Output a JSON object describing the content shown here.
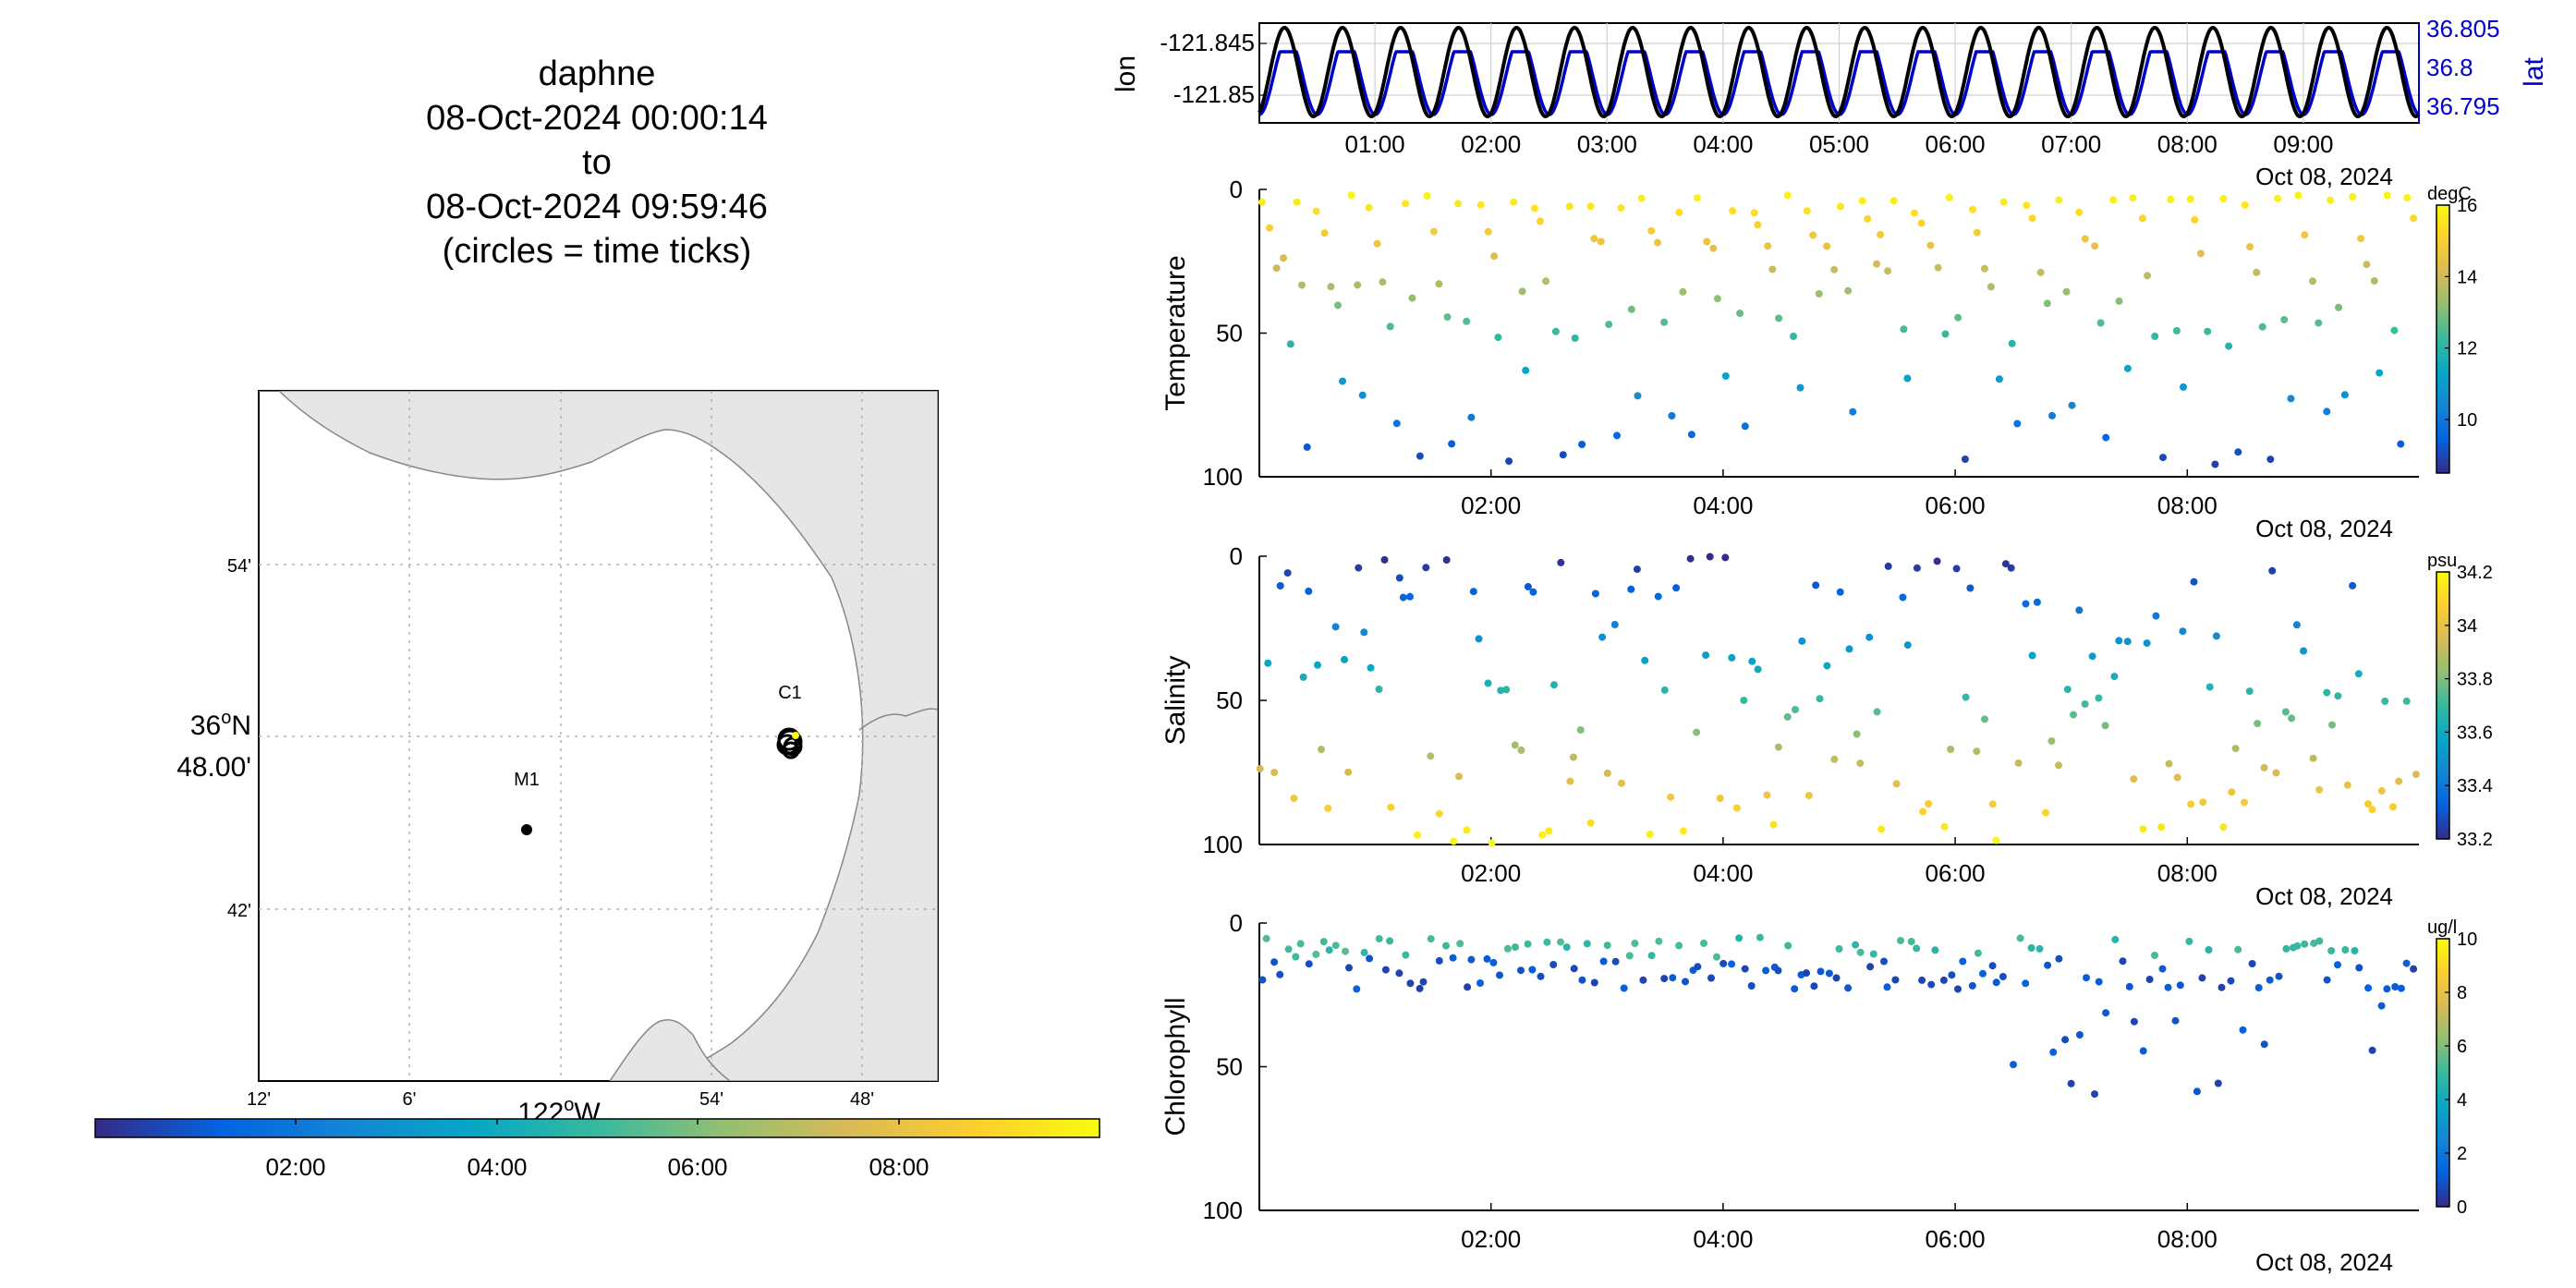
{
  "title": {
    "lines": [
      "daphne",
      "08-Oct-2024 00:00:14",
      "to",
      "08-Oct-2024 09:59:46",
      "(circles = time ticks)"
    ]
  },
  "colors": {
    "track_black": "#000000",
    "track_blue": "#0000cc",
    "land": "#e6e6e6",
    "grid": "#b0b0b0",
    "parula": [
      "#352a87",
      "#0363e1",
      "#1485d4",
      "#06a7c6",
      "#38b99e",
      "#92bf73",
      "#d9ba56",
      "#fcce2e",
      "#f9fb0e"
    ]
  },
  "chart_data": [
    {
      "type": "line",
      "name": "position-timeseries",
      "left_ylabel": "lon",
      "right_ylabel": "lat",
      "left_ticks": [
        "-121.845",
        "-121.85"
      ],
      "right_ticks": [
        "36.805",
        "36.8",
        "36.795"
      ],
      "x_ticks": [
        "01:00",
        "02:00",
        "03:00",
        "04:00",
        "05:00",
        "06:00",
        "07:00",
        "08:00",
        "09:00"
      ],
      "x_date_label": "Oct 08, 2024",
      "xlim": [
        "00:00:14",
        "09:59:46"
      ],
      "series": [
        {
          "name": "lon",
          "axis": "left",
          "period_hours": 0.5,
          "min": -121.8505,
          "max": -121.8443
        },
        {
          "name": "lat",
          "axis": "right",
          "period_hours": 0.5,
          "min": 36.7942,
          "max": 36.8005
        }
      ]
    },
    {
      "type": "scatter",
      "name": "temperature-section",
      "ylabel": "Temperature",
      "y_ticks": [
        "0",
        "50",
        "100"
      ],
      "ylim": [
        0,
        100
      ],
      "y_reversed": true,
      "x_ticks": [
        "02:00",
        "04:00",
        "06:00",
        "08:00"
      ],
      "x_date_label": "Oct 08, 2024",
      "colorbar": {
        "unit": "degC",
        "ticks": [
          "16",
          "14",
          "12",
          "10"
        ],
        "range": [
          8.5,
          16
        ]
      }
    },
    {
      "type": "scatter",
      "name": "salinity-section",
      "ylabel": "Salinity",
      "y_ticks": [
        "0",
        "50",
        "100"
      ],
      "ylim": [
        0,
        100
      ],
      "y_reversed": true,
      "x_ticks": [
        "02:00",
        "04:00",
        "06:00",
        "08:00"
      ],
      "x_date_label": "Oct 08, 2024",
      "colorbar": {
        "unit": "psu",
        "ticks": [
          "34.2",
          "34",
          "33.8",
          "33.6",
          "33.4",
          "33.2"
        ],
        "range": [
          33.2,
          34.2
        ]
      }
    },
    {
      "type": "scatter",
      "name": "chlorophyll-section",
      "ylabel": "Chlorophyll",
      "y_ticks": [
        "0",
        "50",
        "100"
      ],
      "ylim": [
        0,
        100
      ],
      "y_reversed": true,
      "x_ticks": [
        "02:00",
        "04:00",
        "06:00",
        "08:00"
      ],
      "x_date_label": "Oct 08, 2024",
      "colorbar": {
        "unit": "ug/l",
        "ticks": [
          "10",
          "8",
          "6",
          "4",
          "2",
          "0"
        ],
        "range": [
          0,
          10
        ]
      }
    }
  ],
  "map": {
    "lat_ticks": [
      "54'",
      "36°N 48.00'",
      "42'"
    ],
    "lon_ticks": [
      "12'",
      "6'",
      "122°W",
      "54'",
      "48'"
    ],
    "stations": [
      {
        "label": "M1"
      },
      {
        "label": "C1"
      }
    ],
    "time_colorbar_ticks": [
      "02:00",
      "04:00",
      "06:00",
      "08:00"
    ]
  }
}
